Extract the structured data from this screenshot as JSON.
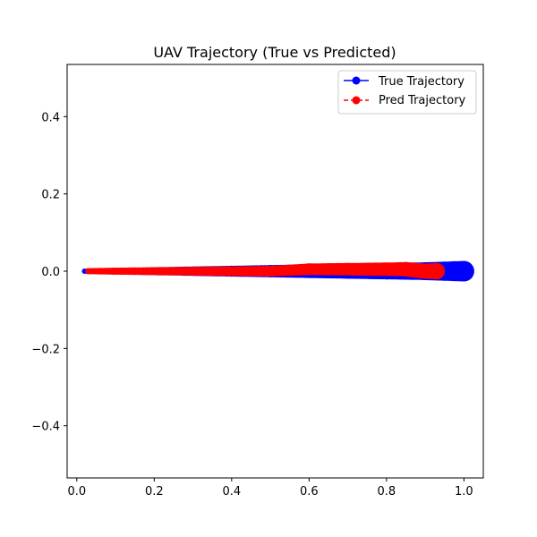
{
  "chart_data": {
    "type": "scatter",
    "title": "UAV Trajectory (True vs Predicted)",
    "xlabel": "",
    "ylabel": "",
    "xlim": [
      -0.025,
      1.05
    ],
    "ylim": [
      -0.535,
      0.535
    ],
    "xticks": [
      0.0,
      0.2,
      0.4,
      0.6,
      0.8,
      1.0
    ],
    "xtick_labels": [
      "0.0",
      "0.2",
      "0.4",
      "0.6",
      "0.8",
      "1.0"
    ],
    "yticks": [
      -0.4,
      -0.2,
      0.0,
      0.2,
      0.4
    ],
    "ytick_labels": [
      "−0.4",
      "−0.2",
      "0.0",
      "0.2",
      "0.4"
    ],
    "grid": false,
    "legend_position": "top-right",
    "series": [
      {
        "name": "True Trajectory",
        "color": "#0000ff",
        "linestyle": "solid",
        "marker": "circle",
        "x": [
          0.02,
          0.1,
          0.2,
          0.3,
          0.4,
          0.5,
          0.6,
          0.7,
          0.8,
          0.9,
          0.95,
          1.0
        ],
        "y": [
          0.0,
          0.0,
          0.0,
          0.0,
          0.0,
          0.0,
          0.0,
          0.0,
          0.0,
          0.0,
          0.0,
          0.0
        ]
      },
      {
        "name": "Pred Trajectory",
        "color": "#ff0000",
        "linestyle": "dashed",
        "marker": "circle",
        "x": [
          0.03,
          0.1,
          0.2,
          0.3,
          0.4,
          0.5,
          0.6,
          0.7,
          0.8,
          0.85,
          0.9,
          0.93
        ],
        "y": [
          0.0,
          0.0,
          0.0,
          0.0,
          0.0,
          0.0,
          0.005,
          0.005,
          0.005,
          0.005,
          0.0,
          0.0
        ]
      }
    ]
  }
}
